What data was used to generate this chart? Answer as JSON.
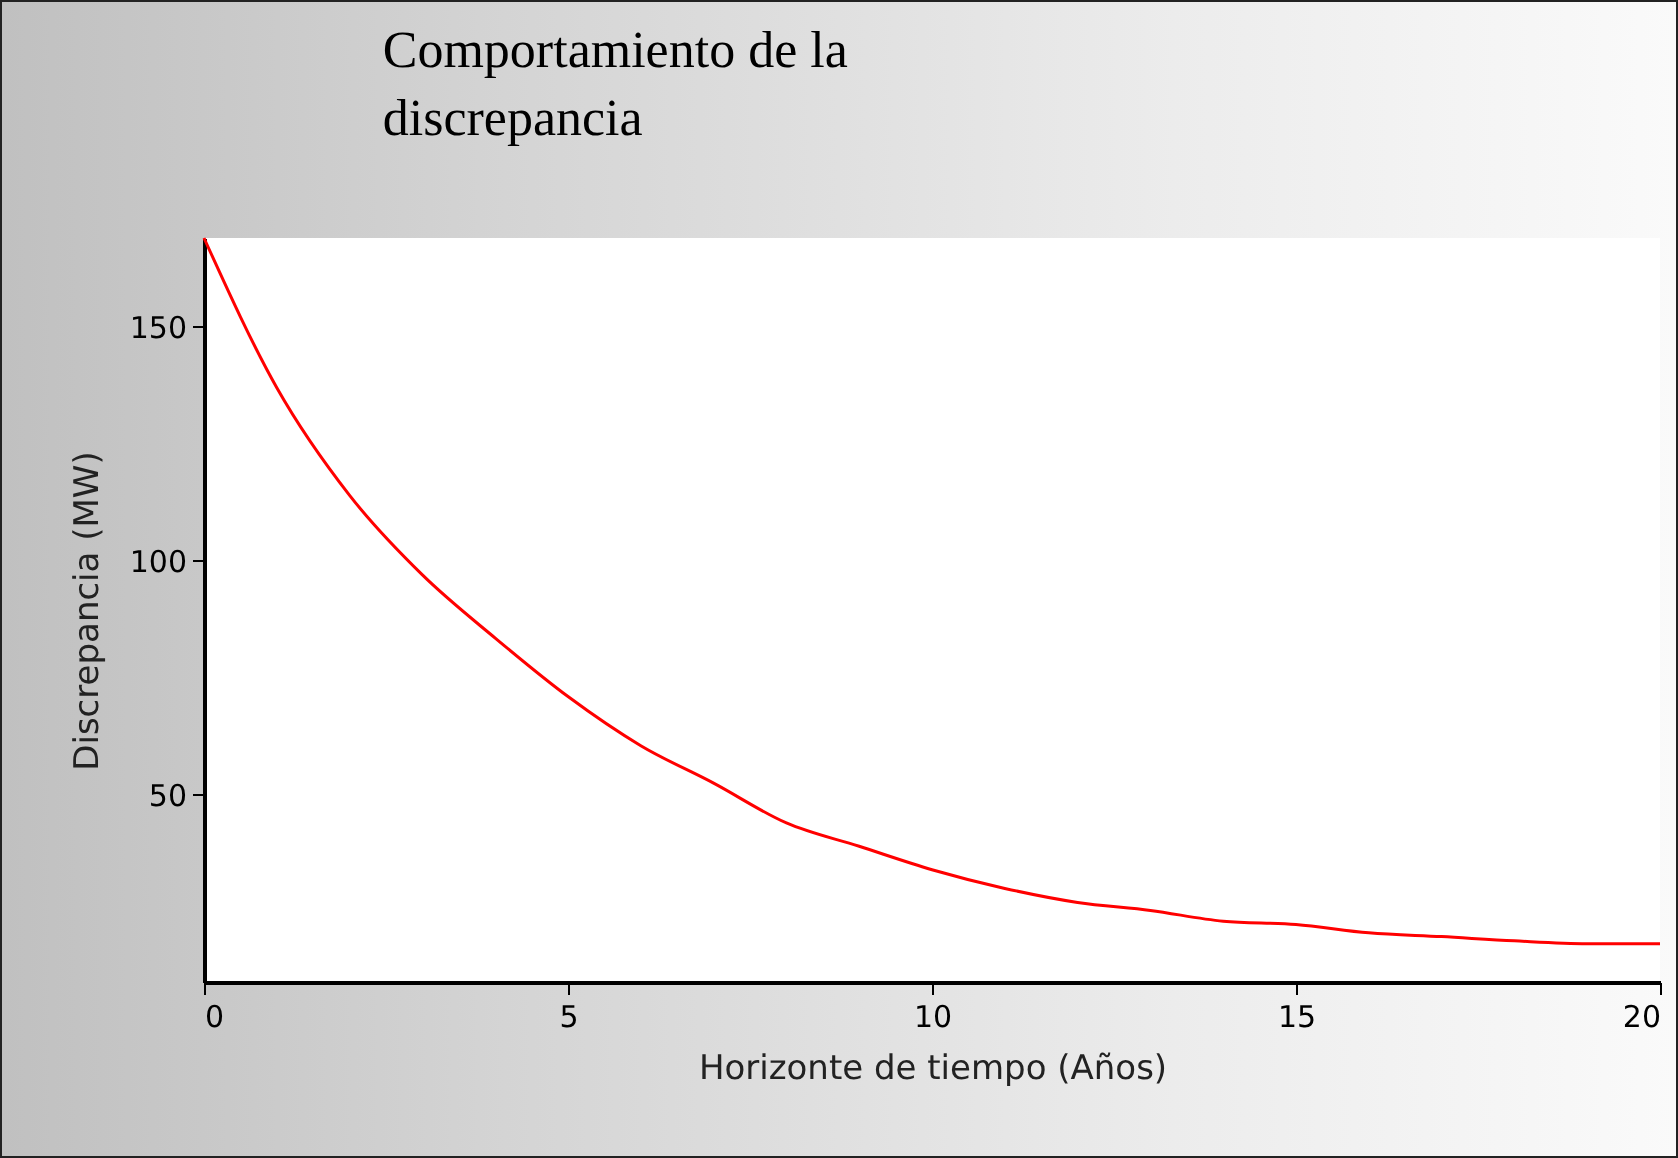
{
  "chart_data": {
    "type": "line",
    "title": [
      "Comportamiento de la",
      "discrepancia"
    ],
    "xlabel": "Horizonte de tiempo (Años)",
    "ylabel": "Discrepancia (MW)",
    "x": [
      0,
      1,
      2,
      3,
      4,
      5,
      6,
      7,
      8,
      9,
      10,
      11,
      12,
      13,
      14,
      15,
      16,
      17,
      18,
      19,
      20
    ],
    "series": [
      {
        "color": "#ff0000",
        "values": [
          169,
          137,
          114,
          97,
          83.5,
          71,
          60.5,
          52.5,
          44,
          39,
          34,
          30,
          27,
          25.3,
          23,
          22.3,
          20.5,
          19.7,
          18.8,
          18.2,
          18.2
        ]
      }
    ],
    "xlim": [
      0,
      20
    ],
    "xticks": [
      0,
      5,
      10,
      15,
      20
    ],
    "ylim": [
      10,
      169
    ],
    "yticks": [
      50,
      100,
      150
    ],
    "grid": false
  }
}
